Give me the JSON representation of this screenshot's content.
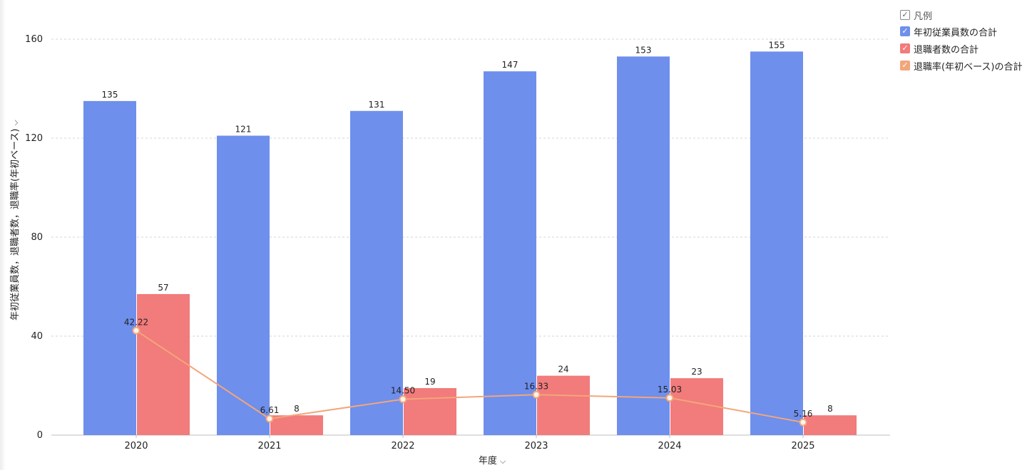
{
  "legend": {
    "title": "凡例",
    "items": [
      {
        "label": "年初従業員数の合計",
        "color": "#6e8fec"
      },
      {
        "label": "退職者数の合計",
        "color": "#f27b7b"
      },
      {
        "label": "退職率(年初ベース)の合計",
        "color": "#f2a67b"
      }
    ]
  },
  "x_axis": {
    "label": "年度",
    "chevron": "chevron-down-icon"
  },
  "y_axis": {
    "label": "年初従業員数，退職者数，退職率(年初ベース)",
    "chevron": "chevron-down-icon"
  },
  "chart_data": {
    "type": "bar",
    "categories": [
      "2020",
      "2021",
      "2022",
      "2023",
      "2024",
      "2025"
    ],
    "series": [
      {
        "name": "年初従業員数の合計",
        "type": "bar",
        "color": "#6e8fec",
        "values": [
          135,
          121,
          131,
          147,
          153,
          155
        ],
        "labels": [
          "135",
          "121",
          "131",
          "147",
          "153",
          "155"
        ]
      },
      {
        "name": "退職者数の合計",
        "type": "bar",
        "color": "#f27b7b",
        "values": [
          57,
          8,
          19,
          24,
          23,
          8
        ],
        "labels": [
          "57",
          "8",
          "19",
          "24",
          "23",
          "8"
        ]
      },
      {
        "name": "退職率(年初ベース)の合計",
        "type": "line",
        "color": "#f2a67b",
        "values": [
          42.22,
          6.61,
          14.5,
          16.33,
          15.03,
          5.16
        ],
        "labels": [
          "42.22",
          "6.61",
          "14.50",
          "16.33",
          "15.03",
          "5.16"
        ]
      }
    ],
    "xlabel": "年度",
    "ylabel": "年初従業員数，退職者数，退職率(年初ベース)",
    "ylim": [
      0,
      160
    ],
    "yticks": [
      "0",
      "40",
      "80",
      "120",
      "160"
    ],
    "grid": true,
    "legend_position": "top-right"
  }
}
